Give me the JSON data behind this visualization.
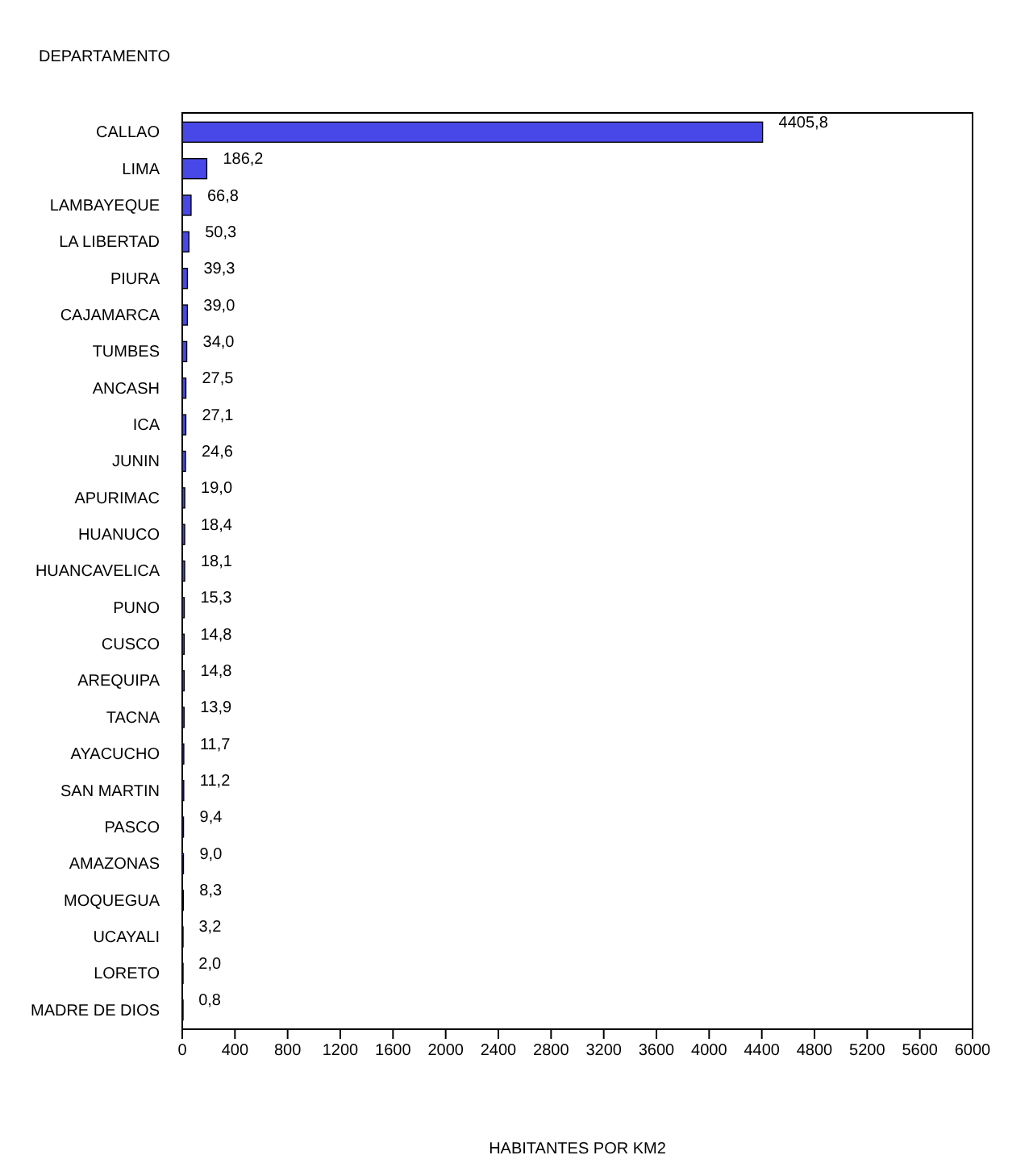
{
  "chart_data": {
    "type": "bar",
    "orientation": "horizontal",
    "ylabel": "DEPARTAMENTO",
    "xlabel": "HABITANTES POR KM2",
    "categories": [
      "CALLAO",
      "LIMA",
      "LAMBAYEQUE",
      "LA LIBERTAD",
      "PIURA",
      "CAJAMARCA",
      "TUMBES",
      "ANCASH",
      "ICA",
      "JUNIN",
      "APURIMAC",
      "HUANUCO",
      "HUANCAVELICA",
      "PUNO",
      "CUSCO",
      "AREQUIPA",
      "TACNA",
      "AYACUCHO",
      "SAN MARTIN",
      "PASCO",
      "AMAZONAS",
      "MOQUEGUA",
      "UCAYALI",
      "LORETO",
      "MADRE DE DIOS"
    ],
    "values": [
      4405.8,
      186.2,
      66.8,
      50.3,
      39.3,
      39.0,
      34.0,
      27.5,
      27.1,
      24.6,
      19.0,
      18.4,
      18.1,
      15.3,
      14.8,
      14.8,
      13.9,
      11.7,
      11.2,
      9.4,
      9.0,
      8.3,
      3.2,
      2.0,
      0.8
    ],
    "value_labels": [
      "4405,8",
      "186,2",
      "66,8",
      "50,3",
      "39,3",
      "39,0",
      "34,0",
      "27,5",
      "27,1",
      "24,6",
      "19,0",
      "18,4",
      "18,1",
      "15,3",
      "14,8",
      "14,8",
      "13,9",
      "11,7",
      "11,2",
      "9,4",
      "9,0",
      "8,3",
      "3,2",
      "2,0",
      "0,8"
    ],
    "color": "#4848e8",
    "xlim": [
      0,
      6000
    ],
    "xticks": [
      0,
      400,
      800,
      1200,
      1600,
      2000,
      2400,
      2800,
      3200,
      3600,
      4000,
      4400,
      4800,
      5200,
      5600,
      6000
    ]
  }
}
